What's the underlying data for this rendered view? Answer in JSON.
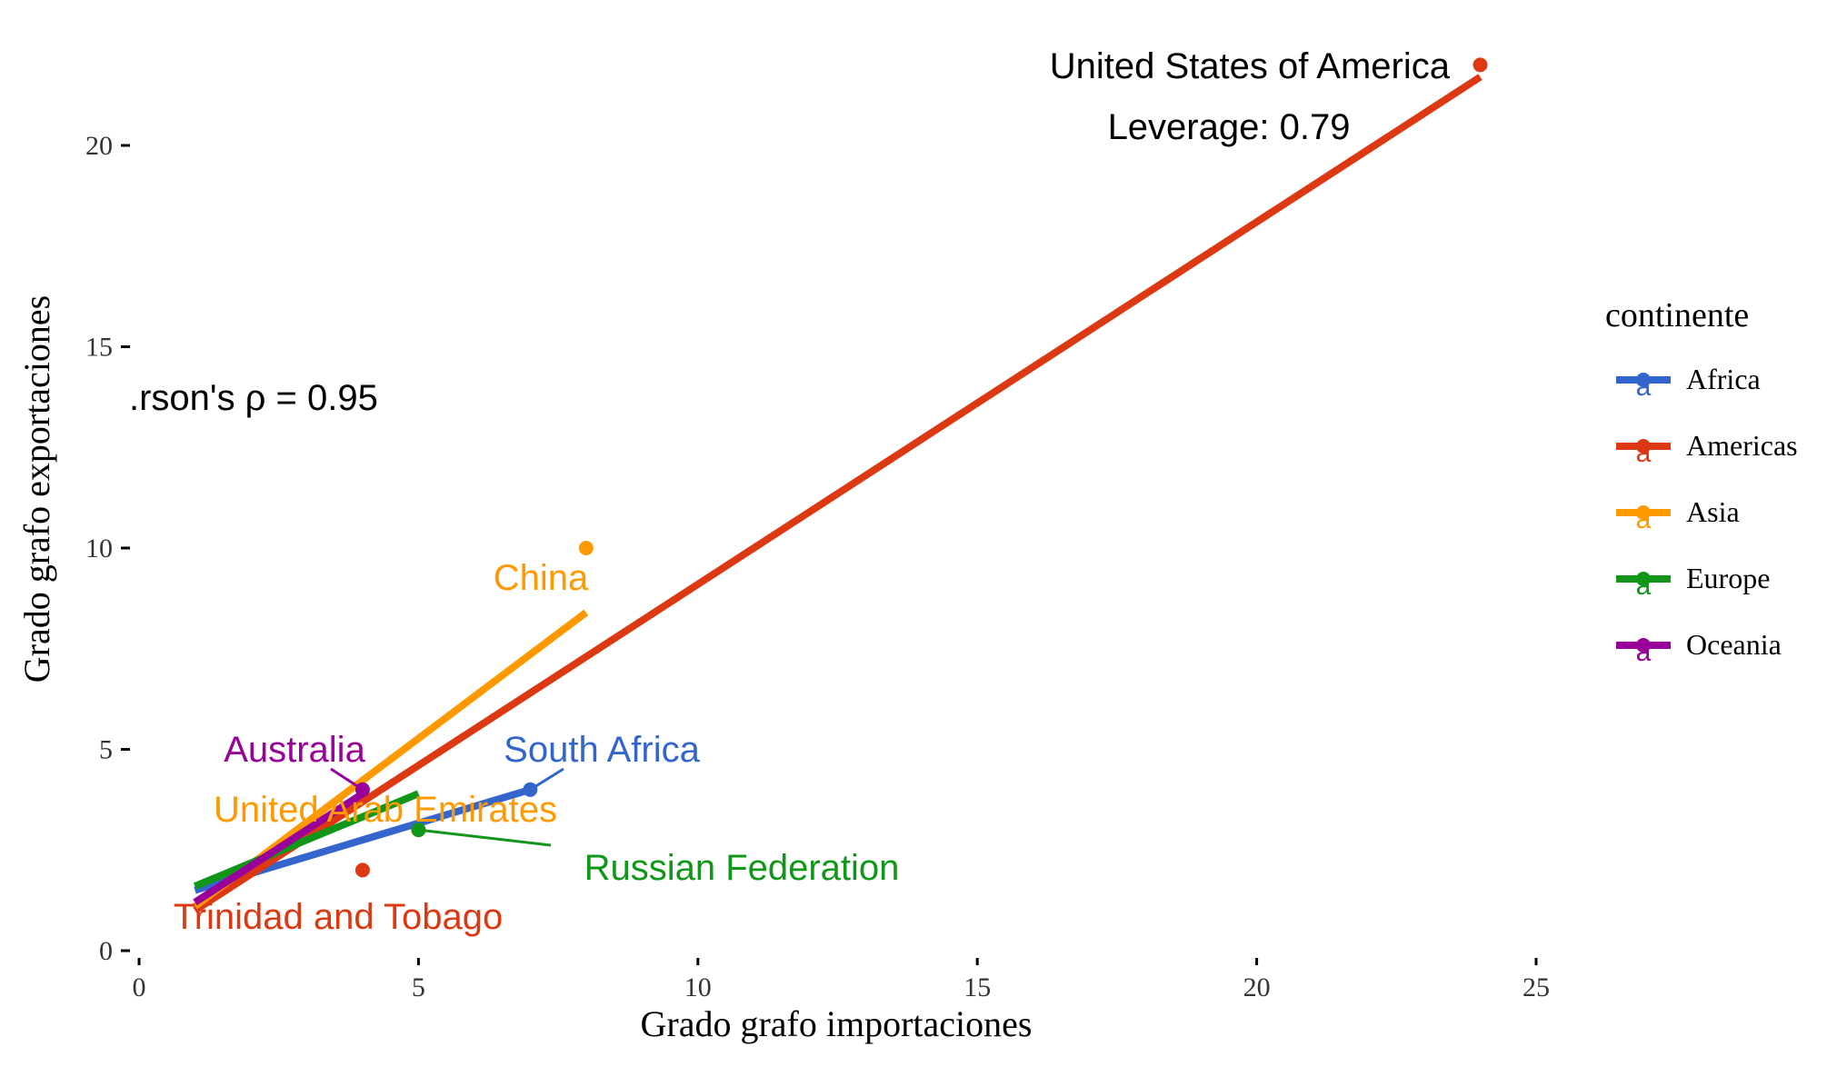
{
  "chart_data": {
    "type": "scatter",
    "xlabel": "Grado grafo importaciones",
    "ylabel": "Grado grafo exportaciones",
    "xlim": [
      0,
      25
    ],
    "ylim": [
      0,
      22
    ],
    "x_ticks": [
      0,
      5,
      10,
      15,
      20,
      25
    ],
    "y_ticks": [
      0,
      5,
      10,
      15,
      20
    ],
    "grid": false,
    "legend": {
      "title": "continente",
      "placement": "right",
      "glyph": "a"
    },
    "annotation": ".rson's ρ = 0.95",
    "leverage_label": "Leverage: 0.79",
    "series": [
      {
        "name": "Africa",
        "color": "#3366CC",
        "points": [
          {
            "x": 7,
            "y": 4,
            "label": "South Africa"
          }
        ],
        "fit": [
          [
            1,
            1.5
          ],
          [
            7,
            4
          ]
        ]
      },
      {
        "name": "Americas",
        "color": "#DC3912",
        "points": [
          {
            "x": 24,
            "y": 22,
            "label": "United States of America"
          },
          {
            "x": 4,
            "y": 2,
            "label": "Trinidad and Tobago"
          }
        ],
        "fit": [
          [
            1,
            1
          ],
          [
            24,
            21.7
          ]
        ]
      },
      {
        "name": "Asia",
        "color": "#FF9900",
        "points": [
          {
            "x": 8,
            "y": 10,
            "label": "China"
          },
          {
            "x": 5,
            "y": 3,
            "label": "United Arab Emirates"
          }
        ],
        "fit": [
          [
            1,
            1.1
          ],
          [
            8,
            8.4
          ]
        ]
      },
      {
        "name": "Europe",
        "color": "#109618",
        "points": [
          {
            "x": 5,
            "y": 3,
            "label": "Russian Federation"
          }
        ],
        "fit": [
          [
            1,
            1.6
          ],
          [
            5,
            3.9
          ]
        ]
      },
      {
        "name": "Oceania",
        "color": "#990099",
        "points": [
          {
            "x": 4,
            "y": 4,
            "label": "Australia"
          }
        ],
        "fit": [
          [
            1,
            1.2
          ],
          [
            4,
            3.9
          ]
        ]
      }
    ]
  }
}
